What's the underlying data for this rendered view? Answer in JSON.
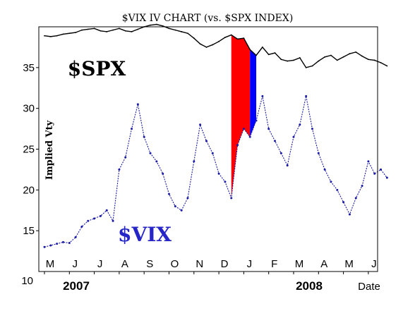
{
  "chart_data": {
    "type": "line",
    "title": "$VIX IV CHART (vs. $SPX INDEX)",
    "xlabel": "Date",
    "ylabel": "Implied Vty",
    "ylim": [
      10,
      40
    ],
    "y_ticks": [
      "15",
      "20",
      "25",
      "30",
      "35"
    ],
    "y_bottom_label": "10",
    "months": [
      "M",
      "J",
      "J",
      "A",
      "S",
      "O",
      "N",
      "D",
      "J",
      "F",
      "M",
      "A",
      "M",
      "J"
    ],
    "years": [
      {
        "label": "2007"
      },
      {
        "label": "2008"
      }
    ],
    "grid": false,
    "series": [
      {
        "name": "$SPX",
        "color": "#000000",
        "x": [
          0,
          0.25,
          0.5,
          0.75,
          1,
          1.25,
          1.5,
          1.75,
          2,
          2.25,
          2.5,
          2.75,
          3,
          3.25,
          3.5,
          3.75,
          4,
          4.25,
          4.5,
          4.75,
          5,
          5.25,
          5.5,
          5.75,
          6,
          6.25,
          6.5,
          6.75,
          7,
          7.25,
          7.5,
          7.75,
          8,
          8.25,
          8.5,
          8.75,
          9,
          9.25,
          9.5,
          9.75,
          10,
          10.25,
          10.5,
          10.75,
          11,
          11.25,
          11.5,
          11.75,
          12,
          12.25,
          12.5,
          12.75,
          13,
          13.25,
          13.5,
          13.75
        ],
        "values": [
          38.9,
          38.8,
          38.9,
          39.1,
          39.2,
          39.3,
          39.6,
          39.7,
          39.8,
          39.5,
          39.4,
          39.6,
          39.8,
          39.5,
          39.4,
          39.7,
          40.0,
          40.2,
          40.3,
          40.1,
          39.8,
          39.6,
          39.4,
          39.2,
          38.6,
          37.9,
          37.5,
          37.8,
          38.2,
          38.7,
          39.0,
          38.5,
          38.6,
          37.2,
          36.5,
          37.5,
          36.6,
          36.8,
          36.0,
          35.8,
          35.9,
          36.2,
          35.0,
          35.2,
          35.8,
          36.3,
          36.5,
          35.9,
          36.3,
          36.7,
          36.9,
          36.4,
          36.0,
          35.9,
          35.6,
          35.2
        ]
      },
      {
        "name": "$VIX",
        "color": "#1a1aa6",
        "x": [
          0,
          0.25,
          0.5,
          0.75,
          1,
          1.25,
          1.5,
          1.75,
          2,
          2.25,
          2.5,
          2.75,
          3,
          3.25,
          3.5,
          3.75,
          4,
          4.25,
          4.5,
          4.75,
          5,
          5.25,
          5.5,
          5.75,
          6,
          6.25,
          6.5,
          6.75,
          7,
          7.25,
          7.5,
          7.75,
          8,
          8.25,
          8.5,
          8.75,
          9,
          9.25,
          9.5,
          9.75,
          10,
          10.25,
          10.5,
          10.75,
          11,
          11.25,
          11.5,
          11.75,
          12,
          12.25,
          12.5,
          12.75,
          13,
          13.25,
          13.5,
          13.75
        ],
        "values": [
          13.0,
          13.2,
          13.4,
          13.6,
          13.5,
          14.2,
          15.5,
          16.2,
          16.5,
          16.8,
          17.5,
          16.2,
          22.5,
          24.0,
          27.5,
          30.5,
          26.5,
          24.5,
          23.5,
          22.0,
          19.5,
          18.0,
          17.5,
          19.0,
          23.5,
          28.0,
          26.0,
          24.5,
          22.0,
          21.0,
          19.0,
          25.5,
          27.5,
          26.5,
          28.5,
          31.5,
          27.5,
          26.0,
          24.5,
          23.0,
          26.5,
          28.0,
          31.5,
          27.5,
          24.5,
          22.5,
          21.0,
          20.0,
          18.5,
          17.0,
          19.0,
          20.5,
          23.5,
          22.0,
          22.5,
          21.5
        ]
      }
    ],
    "annotations": [
      {
        "text": "$SPX",
        "color": "#000000"
      },
      {
        "text": "$VIX",
        "color": "#2626c8"
      }
    ],
    "highlight_fill_colors": {
      "primary": "#ff0000",
      "secondary": "#0000ff"
    }
  }
}
